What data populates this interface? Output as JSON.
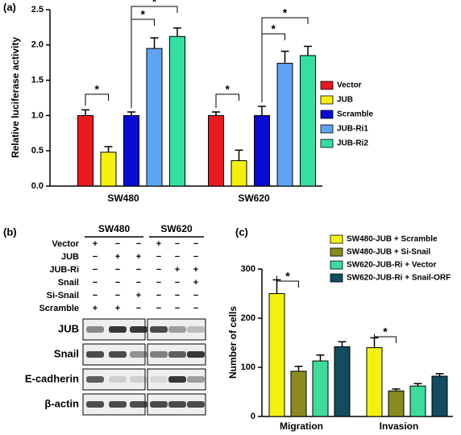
{
  "chart_data": [
    {
      "type": "bar",
      "panel_label": "(a)",
      "ylabel": "Relative luciferase activity",
      "categories": [
        "SW480",
        "SW620"
      ],
      "series": [
        {
          "name": "Vector",
          "color": "#e8191f",
          "values": [
            1.0,
            1.0
          ],
          "errors": [
            0.08,
            0.05
          ]
        },
        {
          "name": "JUB",
          "color": "#f5f00a",
          "values": [
            0.48,
            0.36
          ],
          "errors": [
            0.08,
            0.15
          ]
        },
        {
          "name": "Scramble",
          "color": "#0b0bd4",
          "values": [
            1.0,
            1.0
          ],
          "errors": [
            0.05,
            0.13
          ]
        },
        {
          "name": "JUB-Ri1",
          "color": "#5fa3f5",
          "values": [
            1.95,
            1.74
          ],
          "errors": [
            0.15,
            0.17
          ]
        },
        {
          "name": "JUB-Ri2",
          "color": "#33e0a0",
          "values": [
            2.12,
            1.85
          ],
          "errors": [
            0.12,
            0.13
          ]
        }
      ],
      "ylim": [
        0,
        2.5
      ],
      "yticks": [
        {
          "value": 0,
          "label": "0.0"
        },
        {
          "value": 0.5,
          "label": "0.5"
        },
        {
          "value": 1,
          "label": "1.0"
        },
        {
          "value": 1.5,
          "label": "1.5"
        },
        {
          "value": 2,
          "label": "2.0"
        },
        {
          "value": 2.5,
          "label": "2.5"
        }
      ],
      "annotations": [
        "*",
        "*",
        "*",
        "*",
        "*",
        "*"
      ]
    },
    {
      "type": "bar",
      "panel_label": "(c)",
      "ylabel": "Number of cells",
      "categories": [
        "Migration",
        "Invasion"
      ],
      "series": [
        {
          "name": "SW480-JUB + Scramble",
          "color": "#f3f20f",
          "values": [
            250,
            140
          ],
          "errors": [
            28,
            20
          ]
        },
        {
          "name": "SW480-JUB + Si-Snail",
          "color": "#8a8a1f",
          "values": [
            92,
            52
          ],
          "errors": [
            10,
            4
          ]
        },
        {
          "name": "SW620-JUB-Ri + Vector",
          "color": "#3ddc9c",
          "values": [
            113,
            62
          ],
          "errors": [
            12,
            5
          ]
        },
        {
          "name": "SW620-JUB-Ri + Snail-ORF",
          "color": "#114d5e",
          "values": [
            142,
            82
          ],
          "errors": [
            10,
            5
          ]
        }
      ],
      "ylim": [
        0,
        300
      ],
      "yticks": [
        0,
        100,
        200,
        300
      ],
      "annotations": [
        "*",
        "*"
      ]
    }
  ],
  "blot": {
    "panel_label": "(b)",
    "groups": [
      "SW480",
      "SW620"
    ],
    "conditions": [
      {
        "label": "Vector",
        "signs": [
          "+",
          "−",
          "−",
          "+",
          "−",
          "−"
        ]
      },
      {
        "label": "JUB",
        "signs": [
          "−",
          "+",
          "+",
          "−",
          "−",
          "−"
        ]
      },
      {
        "label": "JUB-Ri",
        "signs": [
          "−",
          "−",
          "−",
          "−",
          "+",
          "+"
        ]
      },
      {
        "label": "Snail",
        "signs": [
          "−",
          "−",
          "−",
          "−",
          "−",
          "+"
        ]
      },
      {
        "label": "Si-Snail",
        "signs": [
          "−",
          "−",
          "+",
          "−",
          "−",
          "−"
        ]
      },
      {
        "label": "Scramble",
        "signs": [
          "+",
          "+",
          "−",
          "−",
          "−",
          "−"
        ]
      }
    ],
    "bands": [
      "JUB",
      "Snail",
      "E-cadherin",
      "β-actin"
    ]
  }
}
